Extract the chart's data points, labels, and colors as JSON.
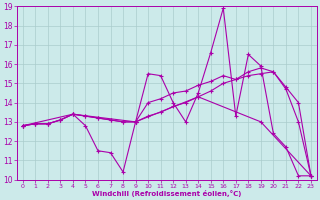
{
  "xlabel": "Windchill (Refroidissement éolien,°C)",
  "bg_color": "#cceaea",
  "grid_color": "#aacccc",
  "line_color": "#aa00aa",
  "xlim": [
    -0.5,
    23.5
  ],
  "ylim": [
    10,
    19
  ],
  "xticks": [
    0,
    1,
    2,
    3,
    4,
    5,
    6,
    7,
    8,
    9,
    10,
    11,
    12,
    13,
    14,
    15,
    16,
    17,
    18,
    19,
    20,
    21,
    22,
    23
  ],
  "yticks": [
    10,
    11,
    12,
    13,
    14,
    15,
    16,
    17,
    18,
    19
  ],
  "lines": [
    {
      "x": [
        0,
        1,
        2,
        3,
        4,
        5,
        6,
        7,
        8,
        9,
        10,
        11,
        12,
        13,
        14,
        15,
        16,
        17,
        18,
        19,
        20,
        21,
        22,
        23
      ],
      "y": [
        12.8,
        12.9,
        12.9,
        13.1,
        13.4,
        12.8,
        11.5,
        11.4,
        10.4,
        13.0,
        15.5,
        15.4,
        14.0,
        13.0,
        14.5,
        16.6,
        18.9,
        13.3,
        16.5,
        15.9,
        12.4,
        11.7,
        10.2,
        10.2
      ]
    },
    {
      "x": [
        0,
        1,
        2,
        3,
        4,
        5,
        6,
        7,
        8,
        9,
        10,
        11,
        12,
        13,
        14,
        15,
        16,
        17,
        18,
        19,
        20,
        21,
        22,
        23
      ],
      "y": [
        12.8,
        12.9,
        12.9,
        13.1,
        13.4,
        13.3,
        13.2,
        13.1,
        13.0,
        13.0,
        13.3,
        13.5,
        13.8,
        14.0,
        14.3,
        14.6,
        15.0,
        15.2,
        15.4,
        15.5,
        15.6,
        14.8,
        14.0,
        10.2
      ]
    },
    {
      "x": [
        0,
        1,
        2,
        3,
        4,
        5,
        6,
        7,
        8,
        9,
        10,
        11,
        12,
        13,
        14,
        15,
        16,
        17,
        18,
        19,
        20,
        21,
        22,
        23
      ],
      "y": [
        12.8,
        12.9,
        12.9,
        13.1,
        13.4,
        13.3,
        13.2,
        13.1,
        13.0,
        13.0,
        14.0,
        14.2,
        14.5,
        14.6,
        14.9,
        15.1,
        15.4,
        15.2,
        15.6,
        15.8,
        15.6,
        14.7,
        13.0,
        10.2
      ]
    },
    {
      "x": [
        0,
        4,
        9,
        14,
        19,
        23
      ],
      "y": [
        12.8,
        13.4,
        13.0,
        14.3,
        13.0,
        10.2
      ]
    }
  ]
}
